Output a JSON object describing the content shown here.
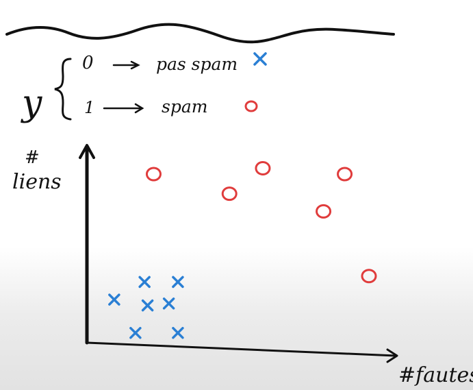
{
  "legend": {
    "variable": "y",
    "class0": {
      "code": "0",
      "label": "pas spam",
      "marker": "cross",
      "color": "#2a7fd4"
    },
    "class1": {
      "code": "1",
      "label": "spam",
      "marker": "circle",
      "color": "#e03c3c"
    }
  },
  "axes": {
    "ylabel_hash": "#",
    "ylabel": "liens",
    "xlabel": "#fautes"
  },
  "points": {
    "spam": [
      {
        "x": 0.22,
        "y": 0.86
      },
      {
        "x": 0.47,
        "y": 0.76
      },
      {
        "x": 0.58,
        "y": 0.89
      },
      {
        "x": 0.85,
        "y": 0.86
      },
      {
        "x": 0.78,
        "y": 0.67
      },
      {
        "x": 0.93,
        "y": 0.34
      }
    ],
    "not_spam": [
      {
        "x": 0.19,
        "y": 0.31
      },
      {
        "x": 0.3,
        "y": 0.31
      },
      {
        "x": 0.09,
        "y": 0.22
      },
      {
        "x": 0.2,
        "y": 0.19
      },
      {
        "x": 0.27,
        "y": 0.2
      },
      {
        "x": 0.16,
        "y": 0.05
      },
      {
        "x": 0.3,
        "y": 0.05
      }
    ]
  }
}
